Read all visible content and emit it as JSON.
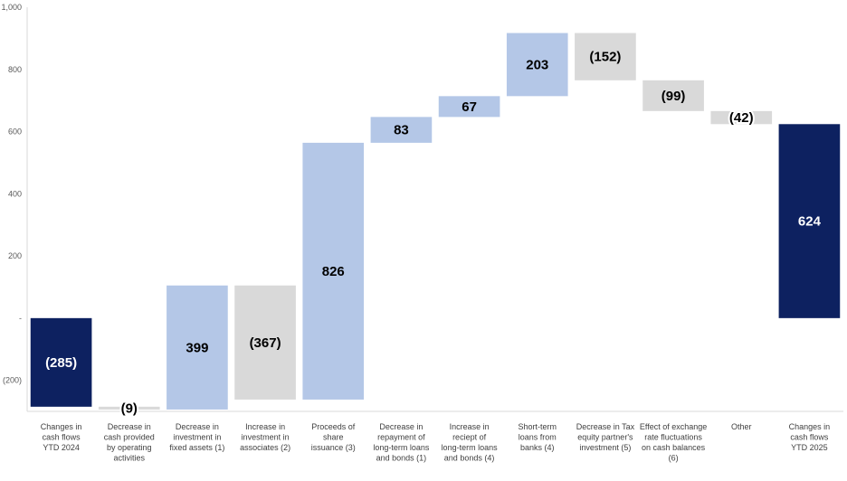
{
  "chart_data": {
    "type": "waterfall",
    "title": "",
    "xlabel": "",
    "ylabel": "",
    "ylim": [
      -300,
      1000
    ],
    "y_ticks": [
      {
        "value": 1000,
        "label": "1,000"
      },
      {
        "value": 800,
        "label": "800"
      },
      {
        "value": 600,
        "label": "600"
      },
      {
        "value": 400,
        "label": "400"
      },
      {
        "value": 200,
        "label": "200"
      },
      {
        "value": 0,
        "label": "-"
      },
      {
        "value": -200,
        "label": "(200)"
      }
    ],
    "grid": false,
    "legend": "none",
    "colors": {
      "total": "#0d2160",
      "increase": "#b4c7e7",
      "decrease": "#d9d9d9",
      "label_dark": "#000000",
      "label_light": "#ffffff",
      "axis": "#d9d9d9"
    },
    "bars": [
      {
        "category": [
          "Changes in",
          "cash flows",
          "YTD 2024"
        ],
        "label": "(285)",
        "start": 0,
        "end": -285,
        "kind": "total"
      },
      {
        "category": [
          "Decrease in",
          "cash provided",
          "by operating",
          "activities"
        ],
        "label": "(9)",
        "start": -285,
        "end": -294,
        "kind": "decrease"
      },
      {
        "category": [
          "Decrease in",
          "investment in",
          "fixed assets (1)"
        ],
        "label": "399",
        "start": -294,
        "end": 105,
        "kind": "increase"
      },
      {
        "category": [
          "Increase in",
          "investment in",
          "associates (2)"
        ],
        "label": "(367)",
        "start": 105,
        "end": -262,
        "kind": "decrease"
      },
      {
        "category": [
          "Proceeds of",
          "share",
          "issuance (3)"
        ],
        "label": "826",
        "start": -262,
        "end": 564,
        "kind": "increase"
      },
      {
        "category": [
          "Decrease in",
          "repayment of",
          "long-term loans",
          "and bonds (1)"
        ],
        "label": "83",
        "start": 564,
        "end": 647,
        "kind": "increase"
      },
      {
        "category": [
          "Increase in",
          "reciept of",
          "long-term loans",
          "and bonds (4)"
        ],
        "label": "67",
        "start": 647,
        "end": 714,
        "kind": "increase"
      },
      {
        "category": [
          "Short-term",
          "loans from",
          "banks (4)"
        ],
        "label": "203",
        "start": 714,
        "end": 917,
        "kind": "increase"
      },
      {
        "category": [
          "Decrease in Tax",
          "equity partner's",
          "investment (5)"
        ],
        "label": "(152)",
        "start": 917,
        "end": 765,
        "kind": "decrease"
      },
      {
        "category": [
          "Effect of exchange",
          "rate fluctuations",
          "on cash balances",
          "(6)"
        ],
        "label": "(99)",
        "start": 765,
        "end": 666,
        "kind": "decrease"
      },
      {
        "category": [
          "Other"
        ],
        "label": "(42)",
        "start": 666,
        "end": 624,
        "kind": "decrease"
      },
      {
        "category": [
          "Changes in",
          "cash flows",
          "YTD 2025"
        ],
        "label": "624",
        "start": 0,
        "end": 624,
        "kind": "total"
      }
    ]
  }
}
